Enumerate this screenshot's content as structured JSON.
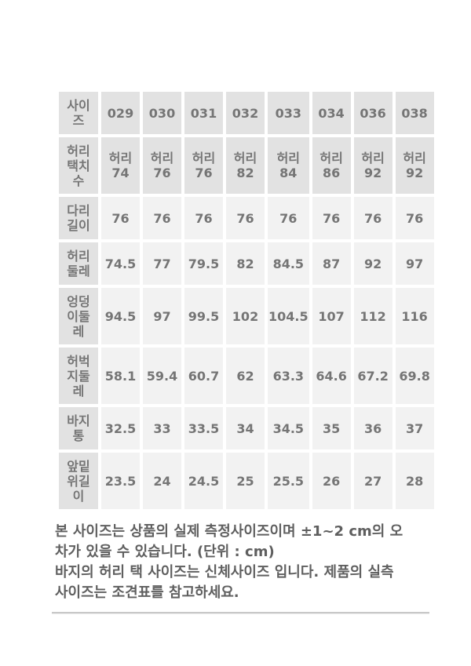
{
  "size_table": {
    "unit": "cm",
    "colors": {
      "header_bg": "#e2e2e2",
      "cell_bg": "#f2f2f2",
      "text": "#757575"
    },
    "rows": [
      {
        "type": "header",
        "label": "사이\n즈",
        "values": [
          "029",
          "030",
          "031",
          "032",
          "033",
          "034",
          "036",
          "038"
        ]
      },
      {
        "type": "header",
        "label": "허리\n택치\n수",
        "values": [
          "허리\n74",
          "허리\n76",
          "허리\n76",
          "허리\n82",
          "허리\n84",
          "허리\n86",
          "허리\n92",
          "허리\n92"
        ]
      },
      {
        "type": "data",
        "label": "다리\n길이",
        "values": [
          "76",
          "76",
          "76",
          "76",
          "76",
          "76",
          "76",
          "76"
        ]
      },
      {
        "type": "data",
        "label": "허리\n둘레",
        "values": [
          "74.5",
          "77",
          "79.5",
          "82",
          "84.5",
          "87",
          "92",
          "97"
        ]
      },
      {
        "type": "data",
        "label": "엉덩\n이둘\n레",
        "values": [
          "94.5",
          "97",
          "99.5",
          "102",
          "104.5",
          "107",
          "112",
          "116"
        ]
      },
      {
        "type": "data",
        "label": "허벅\n지둘\n레",
        "values": [
          "58.1",
          "59.4",
          "60.7",
          "62",
          "63.3",
          "64.6",
          "67.2",
          "69.8"
        ]
      },
      {
        "type": "data",
        "label": "바지\n통",
        "values": [
          "32.5",
          "33",
          "33.5",
          "34",
          "34.5",
          "35",
          "36",
          "37"
        ]
      },
      {
        "type": "data",
        "label": "앞밑\n위길\n이",
        "values": [
          "23.5",
          "24",
          "24.5",
          "25",
          "25.5",
          "26",
          "27",
          "28"
        ]
      }
    ]
  },
  "notes": {
    "paragraph1": "본 사이즈는 상품의 실제 측정사이즈이며 ±1~2 cm의 오\n차가 있을 수 있습니다. (단위 : cm)",
    "paragraph2": "바지의 허리 택 사이즈는 신체사이즈 입니다. 제품의 실측\n사이즈는 조견표를 참고하세요."
  }
}
